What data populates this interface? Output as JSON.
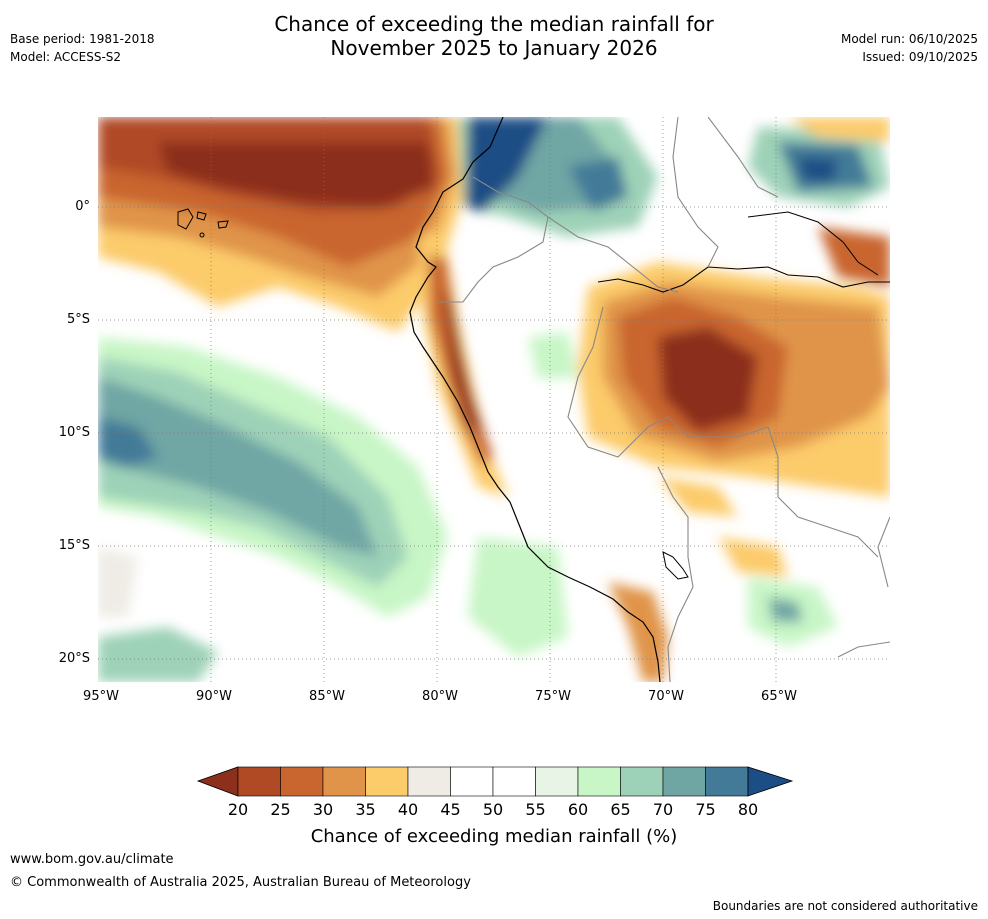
{
  "header": {
    "title_line1": "Chance of exceeding the median rainfall for",
    "title_line2": "November 2025 to January 2026",
    "base_period": "Base period: 1981-2018",
    "model": "Model: ACCESS-S2",
    "model_run": "Model run: 06/10/2025",
    "issued": "Issued: 09/10/2025"
  },
  "map": {
    "region": "Western South America",
    "lat_labels": [
      "0°",
      "5°S",
      "10°S",
      "15°S",
      "20°S"
    ],
    "lon_labels": [
      "95°W",
      "90°W",
      "85°W",
      "80°W",
      "75°W",
      "70°W",
      "65°W"
    ]
  },
  "colorbar": {
    "ticks": [
      "20",
      "25",
      "30",
      "35",
      "40",
      "45",
      "50",
      "55",
      "60",
      "65",
      "70",
      "75",
      "80"
    ],
    "colors": [
      "#8c2f1c",
      "#b04a25",
      "#c9652f",
      "#e0944a",
      "#fccb6a",
      "#efece6",
      "#ffffff",
      "#ffffff",
      "#e8f4e6",
      "#c8f6c6",
      "#9ed2b8",
      "#6fa6a4",
      "#427a98",
      "#1a4e85"
    ],
    "label": "Chance of exceeding median rainfall (%)"
  },
  "footer": {
    "url": "www.bom.gov.au/climate",
    "copyright": "© Commonwealth of Australia 2025, Australian Bureau of Meteorology",
    "disclaimer": "Boundaries are not considered authoritative"
  }
}
